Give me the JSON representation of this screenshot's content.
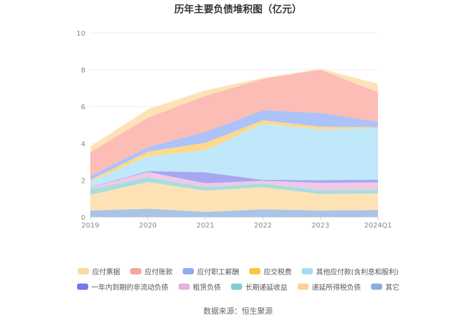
{
  "chart_data": {
    "type": "area",
    "stacked": true,
    "title": "历年主要负债堆积图（亿元）",
    "categories": [
      "2019",
      "2020",
      "2021",
      "2022",
      "2023",
      "2024Q1"
    ],
    "ylim": [
      0,
      10
    ],
    "yticks": [
      0,
      2,
      4,
      6,
      8,
      10
    ],
    "grid": true,
    "legend_position": "bottom",
    "series": [
      {
        "name": "其它",
        "color": "#aac4e8",
        "values": [
          0.35,
          0.45,
          0.28,
          0.42,
          0.35,
          0.38
        ]
      },
      {
        "name": "递延所得税负债",
        "color": "#fde2b6",
        "values": [
          0.85,
          1.45,
          1.15,
          1.2,
          0.9,
          0.9
        ]
      },
      {
        "name": "长期递延收益",
        "color": "#a6dede",
        "values": [
          0.3,
          0.25,
          0.2,
          0.2,
          0.2,
          0.2
        ]
      },
      {
        "name": "租赁负债",
        "color": "#efc9e6",
        "values": [
          0.1,
          0.3,
          0.2,
          0.15,
          0.4,
          0.4
        ]
      },
      {
        "name": "一年内到期的非流动负债",
        "color": "#a9a6f4",
        "values": [
          0.02,
          0.05,
          0.6,
          0.05,
          0.15,
          0.15
        ]
      },
      {
        "name": "其他应付款(含利息和股利)",
        "color": "#bfe9fb",
        "values": [
          0.3,
          0.8,
          1.2,
          3.05,
          2.75,
          2.8
        ]
      },
      {
        "name": "应交税费",
        "color": "#fed98a",
        "values": [
          0.1,
          0.25,
          0.4,
          0.18,
          0.15,
          0.05
        ]
      },
      {
        "name": "应付职工薪酬",
        "color": "#adc2f9",
        "values": [
          0.2,
          0.25,
          0.6,
          0.55,
          0.75,
          0.3
        ]
      },
      {
        "name": "应付账款",
        "color": "#fbbdb6",
        "values": [
          1.3,
          1.6,
          1.95,
          1.7,
          2.35,
          1.6
        ]
      },
      {
        "name": "应付票据",
        "color": "#fde2b6",
        "values": [
          0.3,
          0.45,
          0.3,
          0.05,
          0.05,
          0.45
        ]
      }
    ],
    "source": "数据来源：恒生聚源"
  },
  "legend_rows": [
    [
      {
        "label": "应付票据",
        "color": "#fdd9a3"
      },
      {
        "label": "应付账款",
        "color": "#f7a49a"
      },
      {
        "label": "应付职工薪酬",
        "color": "#8fa9f6"
      },
      {
        "label": "应交税费",
        "color": "#fcc43f"
      },
      {
        "label": "其他应付款(含利息和股利)",
        "color": "#a3dcf7"
      }
    ],
    [
      {
        "label": "一年内到期的非流动负债",
        "color": "#7b76ee"
      },
      {
        "label": "租赁负债",
        "color": "#e7b2dc"
      },
      {
        "label": "长期递延收益",
        "color": "#80d0d0"
      },
      {
        "label": "递延所得税负债",
        "color": "#fcd29a"
      },
      {
        "label": "其它",
        "color": "#8caddf"
      }
    ]
  ]
}
